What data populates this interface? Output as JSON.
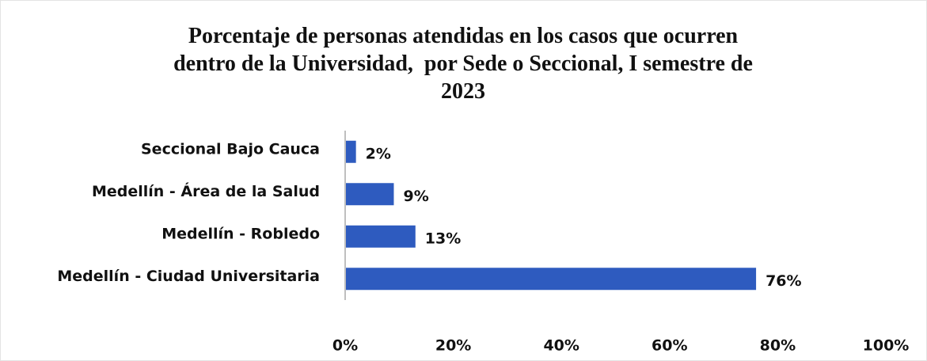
{
  "chart_data": {
    "type": "bar",
    "orientation": "horizontal",
    "title": "Porcentaje de personas atendidas en los casos que ocurren dentro de la Universidad,  por Sede o Seccional, I semestre de 2023",
    "categories": [
      "Seccional Bajo Cauca",
      "Medellín - Área de la Salud",
      "Medellín - Robledo",
      "Medellín - Ciudad Universitaria"
    ],
    "values": [
      2,
      9,
      13,
      76
    ],
    "value_labels": [
      "2%",
      "9%",
      "13%",
      "76%"
    ],
    "color": "#2e5bbf",
    "xlim": [
      0,
      100
    ],
    "xticks": [
      {
        "value": 0,
        "label": "0%"
      },
      {
        "value": 20,
        "label": "20%"
      },
      {
        "value": 40,
        "label": "40%"
      },
      {
        "value": 60,
        "label": "60%"
      },
      {
        "value": 80,
        "label": "80%"
      },
      {
        "value": 100,
        "label": "100%"
      }
    ],
    "grid": false
  }
}
